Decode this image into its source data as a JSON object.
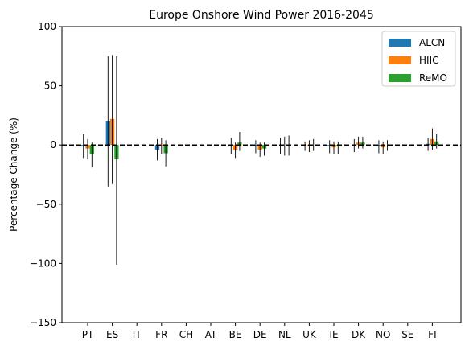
{
  "chart_data": {
    "type": "bar",
    "title": "Europe Onshore Wind Power 2016-2045",
    "xlabel": "",
    "ylabel": "Percentage Change (%)",
    "ylim": [
      -150,
      100
    ],
    "yticks": [
      -150,
      -100,
      -50,
      0,
      50,
      100
    ],
    "reference_line": {
      "y": 0,
      "style": "dashed",
      "color": "#000000"
    },
    "legend_position": "top-right",
    "grid": false,
    "categories": [
      "PT",
      "ES",
      "IT",
      "FR",
      "CH",
      "AT",
      "BE",
      "DE",
      "NL",
      "UK",
      "IE",
      "DK",
      "NO",
      "SE",
      "FI"
    ],
    "series": [
      {
        "name": "ALCN",
        "color": "#1f77b4",
        "values": [
          -1,
          20,
          0,
          -4,
          0,
          0,
          -1,
          -1,
          0,
          0,
          -1,
          0,
          -1,
          0,
          1
        ],
        "err_low": [
          -11,
          -35,
          0,
          -13,
          0,
          0,
          -8,
          -7,
          -8,
          -5,
          -7,
          -6,
          -7,
          0,
          -5
        ],
        "err_high": [
          9,
          75,
          0,
          5,
          0,
          0,
          6,
          4,
          6,
          3,
          4,
          5,
          4,
          0,
          6
        ]
      },
      {
        "name": "HIIC",
        "color": "#ff7f0e",
        "values": [
          -3,
          22,
          0,
          -1,
          0,
          0,
          -4,
          -4,
          0,
          -1,
          -2,
          2,
          -2,
          0,
          5
        ],
        "err_low": [
          -12,
          -33,
          0,
          -8,
          0,
          0,
          -11,
          -10,
          -9,
          -6,
          -8,
          -3,
          -8,
          0,
          -4
        ],
        "err_high": [
          5,
          76,
          0,
          6,
          0,
          0,
          2,
          2,
          7,
          4,
          3,
          7,
          3,
          0,
          14
        ]
      },
      {
        "name": "ReMO",
        "color": "#2ca02c",
        "values": [
          -8,
          -12,
          0,
          -7,
          0,
          0,
          2,
          -3,
          0,
          0,
          -1,
          2,
          0,
          0,
          3
        ],
        "err_low": [
          -19,
          -101,
          0,
          -18,
          0,
          0,
          -5,
          -9,
          -9,
          -5,
          -8,
          -3,
          -5,
          0,
          -3
        ],
        "err_high": [
          2,
          75,
          0,
          4,
          0,
          0,
          11,
          2,
          8,
          5,
          3,
          7,
          4,
          0,
          9
        ]
      }
    ]
  }
}
